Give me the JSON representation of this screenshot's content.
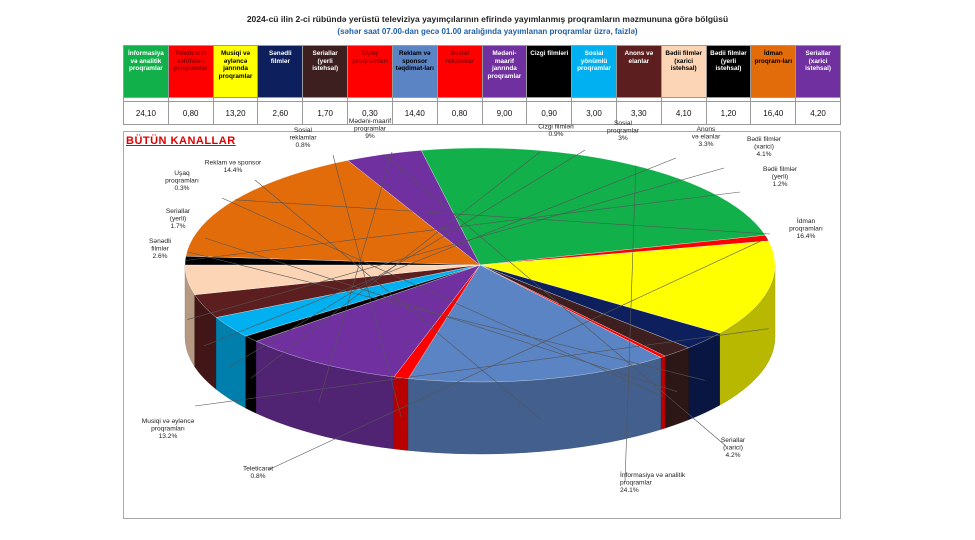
{
  "header": {
    "title": "2024-cü ilin 2-ci rübündə yerüstü televiziya yayımçılarının efirində yayımlanmış proqramların məzmununa görə bölgüsü",
    "subtitle": "(səhər saat 07.00-dan gecə 01.00 aralığında yayımlanan proqramlar üzrə, faizlə)"
  },
  "chart_data": {
    "type": "pie",
    "title": "BÜTÜN KANALLAR",
    "subtitle": "",
    "categories": [
      "İnformasiya və analitik proqramlar",
      "Teleticarət",
      "Musiqi və əyləncə janrında proqramlar",
      "Sənədli filmlər",
      "Seriallar (yerli istehsal)",
      "Uşaq proqramları",
      "Reklam və sponsor təqdimatları",
      "Sosial reklamlar",
      "Mədəni-maarif janrında proqramlar",
      "Cizgi filmləri",
      "Sosial yönümlü proqramlar",
      "Anons və elanlar",
      "Bədii filmlər (xarici istehsal)",
      "Bədii filmlər (yerli istehsal)",
      "İdman proqramları",
      "Seriallar (xarici istehsal)"
    ],
    "values": [
      24.1,
      0.8,
      13.2,
      2.6,
      1.7,
      0.3,
      14.4,
      0.8,
      9.0,
      0.9,
      3.0,
      3.3,
      4.1,
      1.2,
      16.4,
      4.2
    ],
    "value_texts": [
      "24,10",
      "0,80",
      "13,20",
      "2,60",
      "1,70",
      "0,30",
      "14,40",
      "0,80",
      "9,00",
      "0,90",
      "3,00",
      "3,30",
      "4,10",
      "1,20",
      "16,40",
      "4,20"
    ],
    "colors": [
      "#12b04b",
      "#ff0000",
      "#ffff00",
      "#0d1f5c",
      "#3d1f1f",
      "#ff0000",
      "#5b84c4",
      "#ff0000",
      "#7030a0",
      "#000000",
      "#00b0f0",
      "#5c1e1e",
      "#fbd5b5",
      "#000000",
      "#e36c0a",
      "#7030a0"
    ],
    "header_text_colors": [
      "#ffffff",
      "#8b0000",
      "#000000",
      "#ffffff",
      "#ffffff",
      "#8b0000",
      "#000000",
      "#8b0000",
      "#ffffff",
      "#ffffff",
      "#ffffff",
      "#ffffff",
      "#000000",
      "#ffffff",
      "#000000",
      "#ffffff"
    ],
    "pie_labels": [
      [
        "İnformasiya və analitik",
        "proqramlar",
        "24.1%"
      ],
      [
        "Teleticarət",
        "0.8%"
      ],
      [
        "Musiqi və əyləncə",
        "proqramları",
        "13.2%"
      ],
      [
        "Sənədli",
        "filmlər",
        "2.6%"
      ],
      [
        "Seriallar",
        "(yerli)",
        "1.7%"
      ],
      [
        "Uşaq",
        "proqramları",
        "0.3%"
      ],
      [
        "Reklam və sponsor",
        "14.4%"
      ],
      [
        "Sosial",
        "reklamlar",
        "0.8%"
      ],
      [
        "Mədəni-maarif",
        "proqramlar",
        "9%"
      ],
      [
        "Cizgi filmləri",
        "0.9%"
      ],
      [
        "Sosial",
        "proqramlar",
        "3%"
      ],
      [
        "Anons",
        "və elanlar",
        "3.3%"
      ],
      [
        "Bədii filmlər",
        "(xarici)",
        "4.1%"
      ],
      [
        "Bədii filmlər",
        "(yerli)",
        "1.2%"
      ],
      [
        "İdman",
        "proqramları",
        "16.4%"
      ],
      [
        "Seriallar",
        "(xarici)",
        "4.2%"
      ]
    ]
  },
  "legend_headers": [
    "İnformasiya və analitik proqramlar",
    "Teleticarət səhifələri proqramlar",
    "Musiqi və əyləncə janrında proqramlar",
    "Sənədli filmlər",
    "Seriallar (yerli istehsal)",
    "Uşaq proqramları",
    "Reklam və sponsor təqdimat-ları",
    "Sosial reklamlar",
    "Mədəni-maarif janrında proqramlar",
    "Cizgi filmləri",
    "Sosial yönümlü proqramlar",
    "Anons və elanlar",
    "Bədii filmlər (xarici istehsal)",
    "Bədii filmlər (yerli istehsal)",
    "İdman proqram-ları",
    "Seriallar (xarici istehsal)"
  ]
}
